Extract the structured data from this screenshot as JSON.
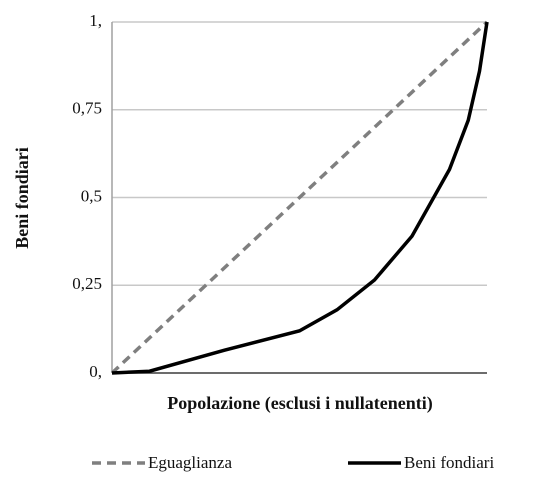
{
  "chart_data": {
    "type": "line",
    "xlabel": "Popolazione (esclusi i nullatenenti)",
    "ylabel": "Beni fondiari",
    "xlim": [
      0,
      1
    ],
    "ylim": [
      0,
      1
    ],
    "yticks": [
      {
        "value": 0,
        "label": "0,"
      },
      {
        "value": 0.25,
        "label": "0,25"
      },
      {
        "value": 0.5,
        "label": "0,5"
      },
      {
        "value": 0.75,
        "label": "0,75"
      },
      {
        "value": 1,
        "label": "1,"
      }
    ],
    "grid": true,
    "legend": "bottom",
    "series": [
      {
        "name": "Eguaglianza",
        "color": "#7f7f7f",
        "dashed": true,
        "x": [
          0,
          1
        ],
        "y": [
          0,
          1
        ]
      },
      {
        "name": "Beni fondiari",
        "color": "#000000",
        "dashed": false,
        "x": [
          0,
          0.1,
          0.3,
          0.5,
          0.6,
          0.7,
          0.8,
          0.9,
          0.95,
          0.98,
          1
        ],
        "y": [
          0,
          0.005,
          0.065,
          0.12,
          0.18,
          0.265,
          0.39,
          0.58,
          0.72,
          0.86,
          1
        ]
      }
    ]
  }
}
